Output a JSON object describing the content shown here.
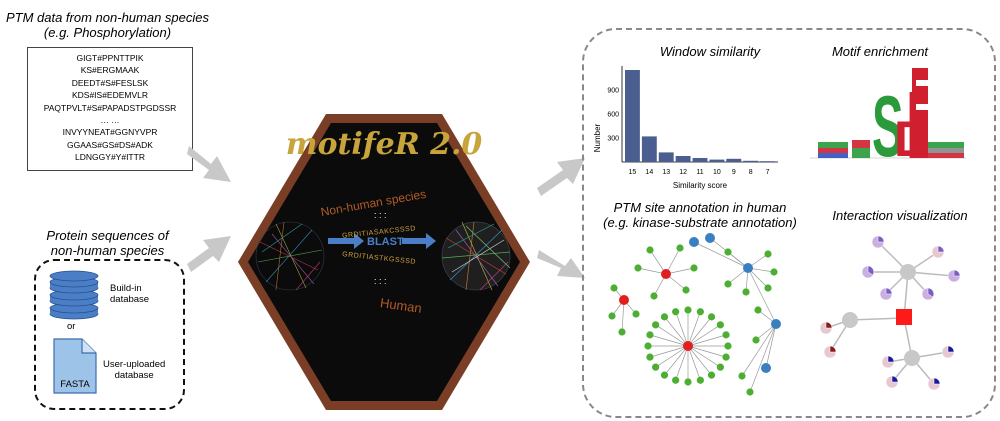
{
  "left": {
    "ptm_title_line1": "PTM data from non-human species",
    "ptm_title_line2": "(e.g. Phosphorylation)",
    "sequences": [
      "GIGT#PPNTTPIK",
      "KS#ERGMAAK",
      "DEEDT#S#FESLSK",
      "KDS#IS#EDEMVLR",
      "PAQTPVLT#S#PAPADSTPGDSSR",
      "… …",
      "INVYYNEAT#GGNYVPR",
      "GGAAS#GS#DS#ADK",
      "LDNGGY#Y#ITTR"
    ],
    "protein_title_line1": "Protein sequences of",
    "protein_title_line2": "non-human species",
    "buildin_label_line1": "Build-in",
    "buildin_label_line2": "database",
    "or_label": "or",
    "file_label": "FASTA",
    "uploaded_label_line1": "User-uploaded",
    "uploaded_label_line2": "database"
  },
  "center": {
    "logo_text": "motifeR 2.0",
    "nonhuman_label": "Non-human species",
    "human_label": "Human",
    "blast_label": "BLAST",
    "upper_seq": "GRDITIASAKCSSSD",
    "lower_seq": "GRDITIASTKGSSSD",
    "dots": ": : :"
  },
  "right": {
    "window_title": "Window similarity",
    "motif_title": "Motif enrichment",
    "annotation_title_line1": "PTM site annotation in human",
    "annotation_title_line2": "(e.g. kinase-substrate annotation)",
    "interaction_title": "Interaction visualization"
  },
  "colors": {
    "hex_border": "#7a3e26",
    "hex_fill": "#0b0b0b",
    "logo": "#c8a53a",
    "bar": "#4a5f8f",
    "db_blue": "#4a7fc8",
    "node_green": "#4caf32",
    "node_red": "#e02020",
    "node_blue": "#3a7fbf",
    "arrow_gray": "#c8c8c8"
  },
  "chart_data": {
    "type": "bar",
    "categories": [
      "15",
      "14",
      "13",
      "12",
      "11",
      "10",
      "9",
      "8",
      "7"
    ],
    "values": [
      1150,
      320,
      120,
      75,
      50,
      30,
      40,
      15,
      10
    ],
    "xlabel": "Similarity score",
    "ylabel": "Number",
    "yticks": [
      300,
      600,
      900
    ],
    "ylim": [
      0,
      1200
    ]
  }
}
